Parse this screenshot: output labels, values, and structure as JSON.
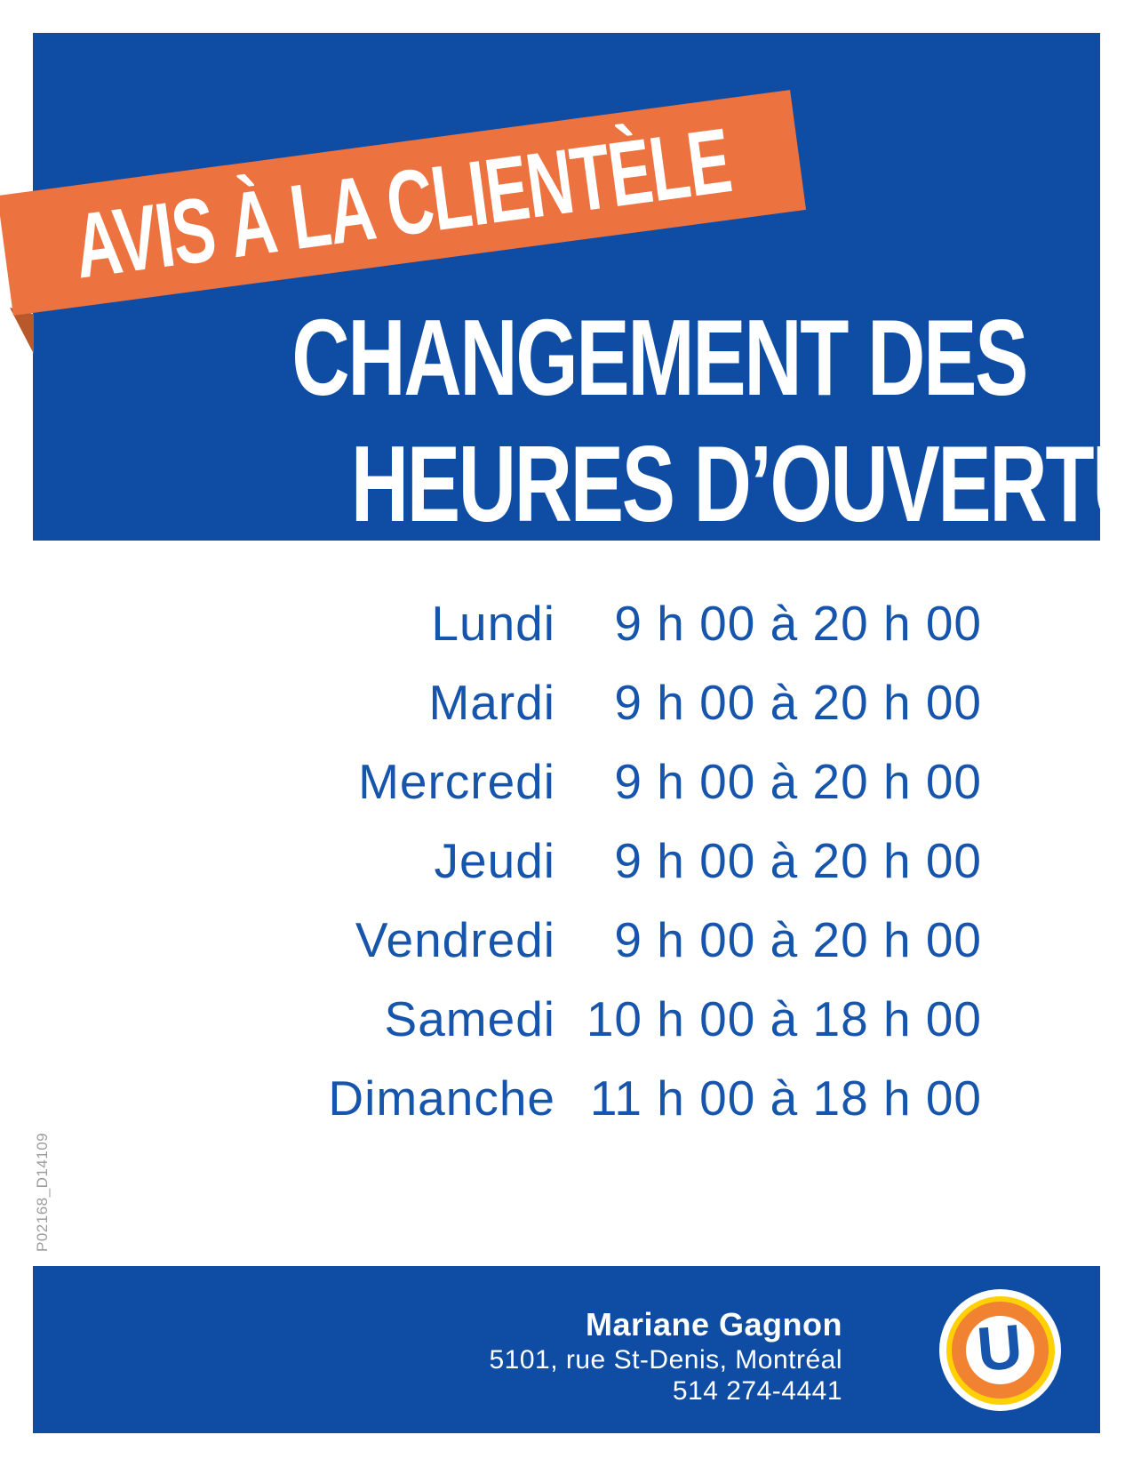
{
  "colors": {
    "brand_blue": "#0E4DA3",
    "schedule_blue": "#1655AB",
    "ribbon_orange": "#EC7340",
    "ribbon_fold_orange": "#B8592B",
    "logo_yellow": "#FFD103",
    "logo_orange": "#F08232",
    "print_code_gray": "#9C9C9C"
  },
  "ribbon": {
    "label": "AVIS À LA CLIENTÈLE"
  },
  "headline": {
    "line1": "CHANGEMENT DES",
    "line2": "HEURES D’OUVERTURE"
  },
  "schedule": {
    "rows": [
      {
        "day": "Lundi",
        "hours": "9 h 00 à 20 h 00"
      },
      {
        "day": "Mardi",
        "hours": "9 h 00 à 20 h 00"
      },
      {
        "day": "Mercredi",
        "hours": "9 h 00 à 20 h 00"
      },
      {
        "day": "Jeudi",
        "hours": "9 h 00 à 20 h 00"
      },
      {
        "day": "Vendredi",
        "hours": "9 h 00 à 20 h 00"
      },
      {
        "day": "Samedi",
        "hours": "10 h 00 à 18 h 00"
      },
      {
        "day": "Dimanche",
        "hours": "11 h 00 à 18 h 00"
      }
    ]
  },
  "print_code": "P02168_D14109",
  "footer": {
    "name": "Mariane Gagnon",
    "address": "5101, rue St-Denis, Montréal",
    "phone": "514 274-4441",
    "logo_letter": "U"
  }
}
